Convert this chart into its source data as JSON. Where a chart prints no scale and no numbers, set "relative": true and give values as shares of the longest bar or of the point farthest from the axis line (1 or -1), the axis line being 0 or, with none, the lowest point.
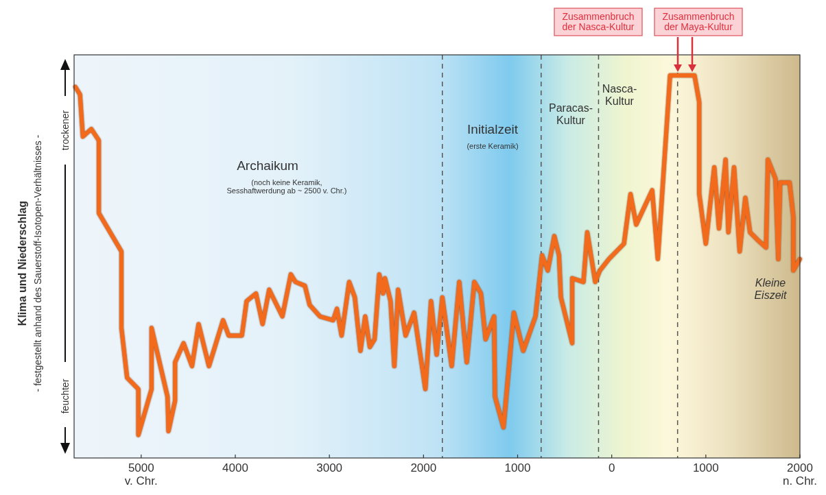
{
  "chart_data": {
    "type": "line",
    "relative": true,
    "ylabel": "Klima und Niederschlag",
    "xlim": [
      -5713,
      2000
    ],
    "xticks": [
      {
        "value": -5000,
        "label": "5000\nv. Chr."
      },
      {
        "value": -4000,
        "label": "4000"
      },
      {
        "value": -3000,
        "label": "3000"
      },
      {
        "value": -2000,
        "label": "2000"
      },
      {
        "value": -1000,
        "label": "1000"
      },
      0,
      1000,
      {
        "value": 2000,
        "label": "2000\nn. Chr."
      }
    ],
    "series": [
      {
        "color": "#f26b1d",
        "line_style": "solid",
        "x": [
          -5700,
          -5650,
          -5620,
          -5530,
          -5450,
          -5450,
          -5210,
          -5210,
          -5150,
          -5030,
          -5030,
          -4890,
          -4890,
          -4720,
          -4710,
          -4640,
          -4640,
          -4550,
          -4460,
          -4390,
          -4280,
          -4130,
          -4070,
          -3930,
          -3880,
          -3780,
          -3710,
          -3640,
          -3500,
          -3410,
          -3360,
          -3260,
          -3210,
          -3100,
          -2960,
          -2920,
          -2870,
          -2790,
          -2730,
          -2670,
          -2620,
          -2570,
          -2520,
          -2470,
          -2430,
          -2410,
          -2350,
          -2310,
          -2270,
          -2190,
          -2100,
          -1980,
          -1920,
          -1860,
          -1800,
          -1700,
          -1620,
          -1540,
          -1460,
          -1390,
          -1340,
          -1250,
          -1240,
          -1150,
          -1040,
          -940,
          -810,
          -740,
          -680,
          -610,
          -560,
          -540,
          -420,
          -420,
          -300,
          -260,
          -175,
          -126,
          -30,
          130,
          200,
          260,
          430,
          490,
          620,
          880,
          930,
          930,
          1000,
          1090,
          1140,
          1210,
          1240,
          1300,
          1360,
          1420,
          1470,
          1550,
          1640,
          1660,
          1740,
          1770,
          1790,
          1890,
          1930,
          1930,
          2000
        ],
        "values": [
          0.97,
          0.95,
          0.84,
          0.86,
          0.83,
          0.64,
          0.54,
          0.34,
          0.21,
          0.18,
          0.06,
          0.18,
          0.34,
          0.16,
          0.07,
          0.15,
          0.25,
          0.3,
          0.24,
          0.35,
          0.24,
          0.36,
          0.32,
          0.32,
          0.41,
          0.43,
          0.35,
          0.44,
          0.37,
          0.48,
          0.46,
          0.45,
          0.4,
          0.37,
          0.36,
          0.39,
          0.32,
          0.46,
          0.42,
          0.28,
          0.37,
          0.29,
          0.31,
          0.48,
          0.43,
          0.47,
          0.41,
          0.24,
          0.44,
          0.32,
          0.38,
          0.18,
          0.41,
          0.27,
          0.42,
          0.24,
          0.46,
          0.25,
          0.46,
          0.43,
          0.31,
          0.37,
          0.16,
          0.08,
          0.38,
          0.28,
          0.37,
          0.53,
          0.49,
          0.58,
          0.53,
          0.42,
          0.3,
          0.47,
          0.46,
          0.59,
          0.46,
          0.49,
          0.52,
          0.56,
          0.69,
          0.61,
          0.7,
          0.52,
          1.0,
          1.0,
          0.93,
          0.69,
          0.56,
          0.76,
          0.6,
          0.78,
          0.59,
          0.76,
          0.54,
          0.68,
          0.59,
          0.57,
          0.55,
          0.78,
          0.73,
          0.52,
          0.72,
          0.72,
          0.63,
          0.49,
          0.52
        ]
      }
    ],
    "ref_lines": [
      {
        "axis": "x",
        "value": -1800,
        "color": "#555555",
        "line_style": "dashed"
      },
      {
        "axis": "x",
        "value": -750,
        "color": "#555555",
        "line_style": "dashed"
      },
      {
        "axis": "x",
        "value": -140,
        "color": "#555555",
        "line_style": "dashed"
      },
      {
        "axis": "x",
        "value": 700,
        "color": "#555555",
        "line_style": "dashed"
      }
    ],
    "annotations": [
      "Archaikum",
      "(noch keine Keramik,\nSesshaftwerdung ab ~ 2500 v. Chr.)",
      "Initialzeit",
      "(erste Keramik)",
      "Paracas-\nKultur",
      "Nasca-\nKultur",
      "Kleine\nEiszeit",
      "Zusammenbruch\nder Nasca-Kultur",
      "Zusammenbruch\nder Maya-Kultur",
      "- festgestellt anhand des Sauerstoff-Isotopen-Verhältnisses -",
      "trockener",
      "feuchter"
    ]
  }
}
